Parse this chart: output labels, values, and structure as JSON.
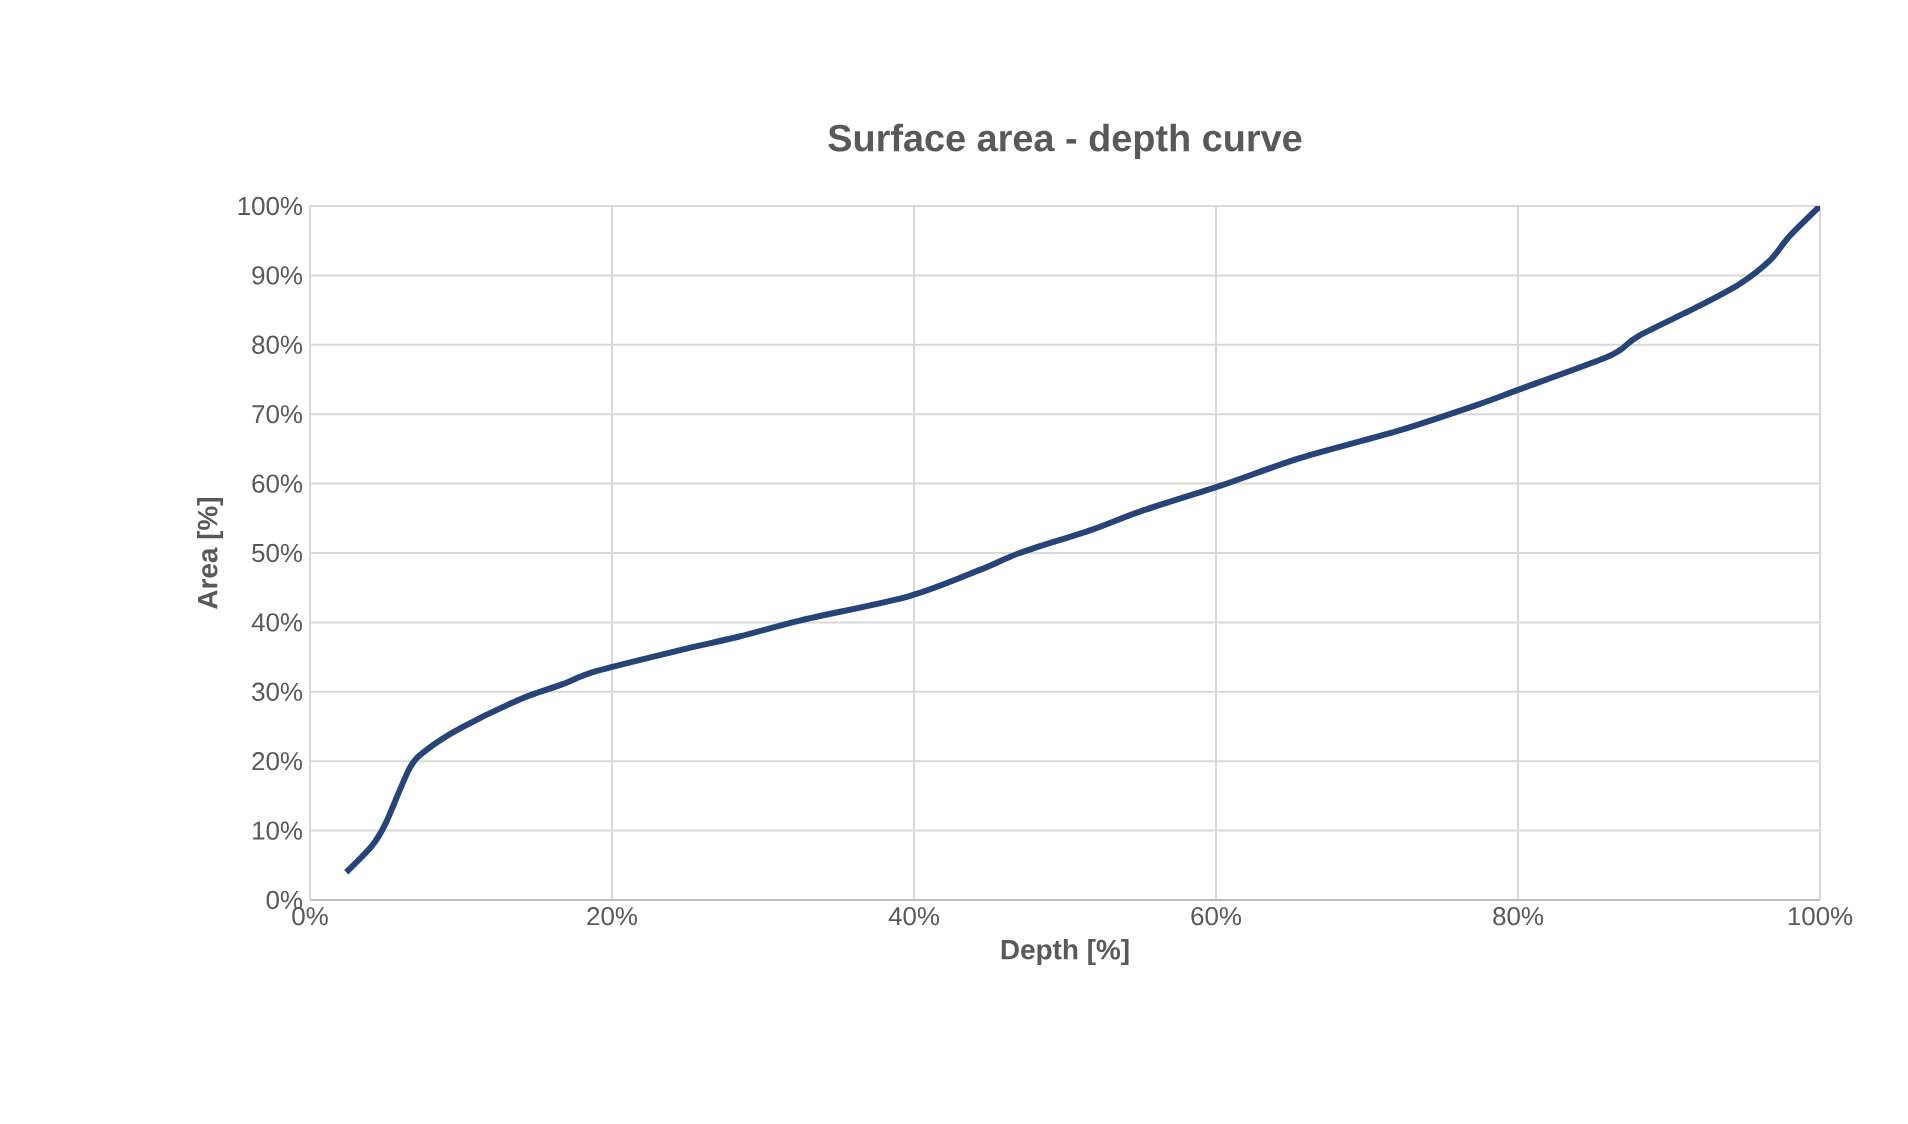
{
  "chart_data": {
    "type": "line",
    "title": "Surface area - depth curve",
    "xlabel": "Depth [%]",
    "ylabel": "Area [%]",
    "series": [
      {
        "color": "#264478",
        "x": [
          2.4,
          4.1,
          5,
          6.6,
          7.7,
          10,
          14,
          16.6,
          19,
          24.5,
          28.5,
          32.5,
          39.7,
          44.4,
          47,
          51.7,
          55,
          60.3,
          65.6,
          72.2,
          77.5,
          80,
          85.4,
          86.8,
          88,
          92,
          94.7,
          96.7,
          98,
          100
        ],
        "values": [
          4,
          7.8,
          11,
          19,
          21.6,
          24.8,
          29,
          31,
          33,
          36,
          38,
          40.3,
          43.8,
          47.6,
          50,
          53.3,
          56,
          59.7,
          63.7,
          67.7,
          71.5,
          73.5,
          77.8,
          79.3,
          81.3,
          85.6,
          88.8,
          92.2,
          95.7,
          100
        ]
      }
    ],
    "xlim": [
      0,
      100
    ],
    "ylim": [
      0,
      100
    ],
    "xticks": [
      {
        "value": 0,
        "label": "0%"
      },
      {
        "value": 20,
        "label": "20%"
      },
      {
        "value": 40,
        "label": "40%"
      },
      {
        "value": 60,
        "label": "60%"
      },
      {
        "value": 80,
        "label": "80%"
      },
      {
        "value": 100,
        "label": "100%"
      }
    ],
    "yticks": [
      {
        "value": 0,
        "label": "0%"
      },
      {
        "value": 10,
        "label": "10%"
      },
      {
        "value": 20,
        "label": "20%"
      },
      {
        "value": 30,
        "label": "30%"
      },
      {
        "value": 40,
        "label": "40%"
      },
      {
        "value": 50,
        "label": "50%"
      },
      {
        "value": 60,
        "label": "60%"
      },
      {
        "value": 70,
        "label": "70%"
      },
      {
        "value": 80,
        "label": "80%"
      },
      {
        "value": 90,
        "label": "90%"
      },
      {
        "value": 100,
        "label": "100%"
      }
    ],
    "grid": true,
    "marker": "none",
    "line_style": "solid"
  }
}
